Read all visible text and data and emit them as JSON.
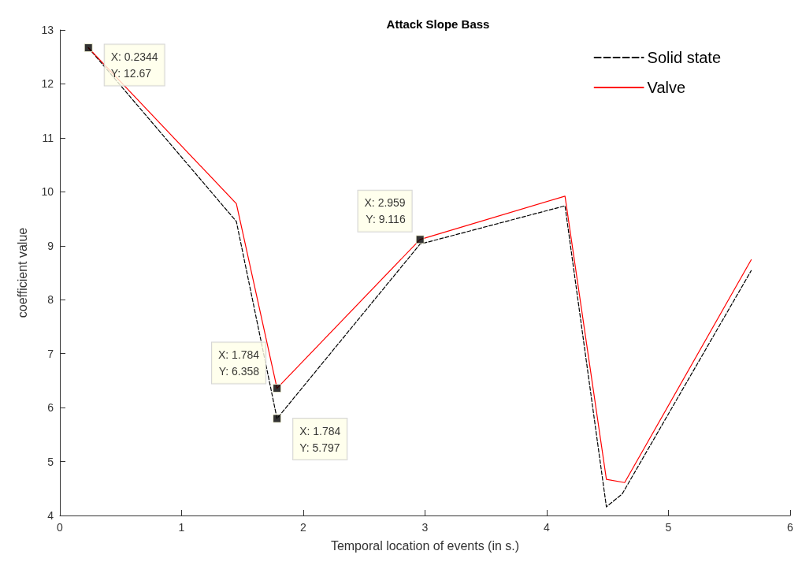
{
  "chart_data": {
    "type": "line",
    "title": "Attack Slope Bass",
    "xlabel": "Temporal location of events (in s.)",
    "ylabel": "coefficient value",
    "xlim": [
      0,
      6
    ],
    "xticks": [
      0,
      1,
      2,
      3,
      4,
      5,
      6
    ],
    "ylim": [
      4,
      13
    ],
    "yticks": [
      4,
      5,
      6,
      7,
      8,
      9,
      10,
      11,
      12,
      13
    ],
    "grid": false,
    "legend": "top right",
    "marker": "none",
    "series": [
      {
        "name": "Solid state",
        "color": "#000000",
        "line_style": "dashed",
        "x": [
          0.2344,
          1.45,
          1.784,
          2.959,
          4.15,
          4.49,
          4.62,
          5.68
        ],
        "values": [
          12.67,
          9.45,
          5.797,
          9.03,
          9.74,
          4.16,
          4.4,
          8.54
        ]
      },
      {
        "name": "Valve",
        "color": "#ff0000",
        "line_style": "solid",
        "x": [
          0.2344,
          1.45,
          1.784,
          2.959,
          4.15,
          4.49,
          4.64,
          5.68
        ],
        "values": [
          12.67,
          9.78,
          6.358,
          9.116,
          9.92,
          4.67,
          4.61,
          8.74
        ]
      }
    ],
    "annotations": [
      {
        "text": "X: 0.2344\nY: 12.67",
        "x": 0.2344,
        "y": 12.67
      },
      {
        "text": "X: 2.959\nY: 9.116",
        "x": 2.959,
        "y": 9.116
      },
      {
        "text": "X: 1.784\nY: 6.358",
        "x": 1.784,
        "y": 6.358
      },
      {
        "text": "X: 1.784\nY: 5.797",
        "x": 1.784,
        "y": 5.797
      }
    ]
  }
}
